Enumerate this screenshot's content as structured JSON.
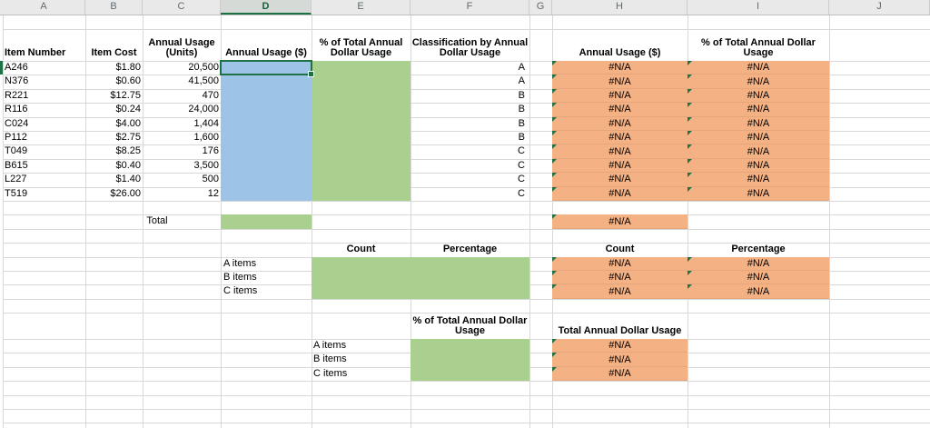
{
  "sheet": {
    "na": "#N/A",
    "column_letters": [
      "A",
      "B",
      "C",
      "D",
      "E",
      "F",
      "G",
      "H",
      "I",
      "J"
    ],
    "colors": {
      "selected_fill_blue": "#9DC3E6",
      "input_fill_green": "#A9D08E",
      "error_fill_orange": "#F4B183",
      "selection_border_green": "#1E7145",
      "error_triangle_green": "#1E7145"
    }
  },
  "table": {
    "headers": {
      "item_number": "Item Number",
      "item_cost": "Item Cost",
      "annual_usage_units": "Annual Usage\n(Units)",
      "annual_usage_dollars": "Annual Usage ($)",
      "pct_total_dollar_usage": "% of Total Annual\nDollar Usage",
      "classification": "Classification by Annual\nDollar Usage",
      "annual_usage_dollars_right": "Annual Usage ($)",
      "pct_total_dollar_usage_right": "% of Total Annual Dollar\nUsage"
    },
    "rows": [
      {
        "item": "A246",
        "cost": "$1.80",
        "units": "20,500",
        "class": "A"
      },
      {
        "item": "N376",
        "cost": "$0.60",
        "units": "41,500",
        "class": "A"
      },
      {
        "item": "R221",
        "cost": "$12.75",
        "units": "470",
        "class": "B"
      },
      {
        "item": "R116",
        "cost": "$0.24",
        "units": "24,000",
        "class": "B"
      },
      {
        "item": "C024",
        "cost": "$4.00",
        "units": "1,404",
        "class": "B"
      },
      {
        "item": "P112",
        "cost": "$2.75",
        "units": "1,600",
        "class": "B"
      },
      {
        "item": "T049",
        "cost": "$8.25",
        "units": "176",
        "class": "C"
      },
      {
        "item": "B615",
        "cost": "$0.40",
        "units": "3,500",
        "class": "C"
      },
      {
        "item": "L227",
        "cost": "$1.40",
        "units": "500",
        "class": "C"
      },
      {
        "item": "T519",
        "cost": "$26.00",
        "units": "12",
        "class": "C"
      }
    ],
    "total_label": "Total"
  },
  "summary": {
    "count_label": "Count",
    "percentage_label": "Percentage",
    "abc_items": [
      "A items",
      "B items",
      "C items"
    ]
  },
  "bottom": {
    "pct_header": "% of Total Annual Dollar\nUsage",
    "total_header": "Total Annual Dollar Usage",
    "abc_items": [
      "A items",
      "B items",
      "C items"
    ]
  }
}
